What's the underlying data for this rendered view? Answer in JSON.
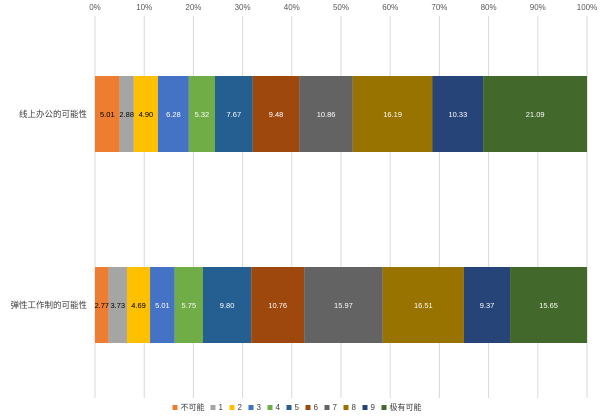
{
  "chart_data": {
    "type": "bar",
    "orientation": "horizontal",
    "stacked": "percent",
    "title": "",
    "xlabel": "",
    "ylabel": "",
    "xlim": [
      0,
      100
    ],
    "grid": true,
    "legend_position": "bottom",
    "x_ticks": [
      "0%",
      "10%",
      "20%",
      "30%",
      "40%",
      "50%",
      "60%",
      "70%",
      "80%",
      "90%",
      "100%"
    ],
    "categories": [
      "线上办公的可能性",
      "弹性工作制的可能性"
    ],
    "series": [
      {
        "name": "不可能",
        "color": "#ED7D31",
        "label_color": "#000000",
        "values": [
          5.01,
          2.77
        ]
      },
      {
        "name": "1",
        "color": "#A5A5A5",
        "label_color": "#000000",
        "values": [
          2.88,
          3.73
        ]
      },
      {
        "name": "2",
        "color": "#FFC000",
        "label_color": "#000000",
        "values": [
          4.9,
          4.69
        ]
      },
      {
        "name": "3",
        "color": "#4472C4",
        "label_color": "#ffffff",
        "values": [
          6.28,
          5.01
        ]
      },
      {
        "name": "4",
        "color": "#70AD47",
        "label_color": "#ffffff",
        "values": [
          5.32,
          5.75
        ]
      },
      {
        "name": "5",
        "color": "#255E91",
        "label_color": "#ffffff",
        "values": [
          7.67,
          9.8
        ]
      },
      {
        "name": "6",
        "color": "#9E480E",
        "label_color": "#ffffff",
        "values": [
          9.48,
          10.76
        ]
      },
      {
        "name": "7",
        "color": "#636363",
        "label_color": "#ffffff",
        "values": [
          10.86,
          15.97
        ]
      },
      {
        "name": "8",
        "color": "#997300",
        "label_color": "#ffffff",
        "values": [
          16.19,
          16.51
        ]
      },
      {
        "name": "9",
        "color": "#264478",
        "label_color": "#ffffff",
        "values": [
          10.33,
          9.37
        ]
      },
      {
        "name": "极有可能",
        "color": "#43682B",
        "label_color": "#ffffff",
        "values": [
          21.09,
          15.65
        ]
      }
    ],
    "value_labels": [
      [
        "5.01",
        "2.88",
        "4.90",
        "6.28",
        "5.32",
        "7.67",
        "9.48",
        "10.86",
        "16.19",
        "10.33",
        "21.09"
      ],
      [
        "2.77",
        "3.73",
        "4.69",
        "5.01",
        "5.75",
        "9.80",
        "10.76",
        "15.97",
        "16.51",
        "9.37",
        "15.65"
      ]
    ]
  }
}
